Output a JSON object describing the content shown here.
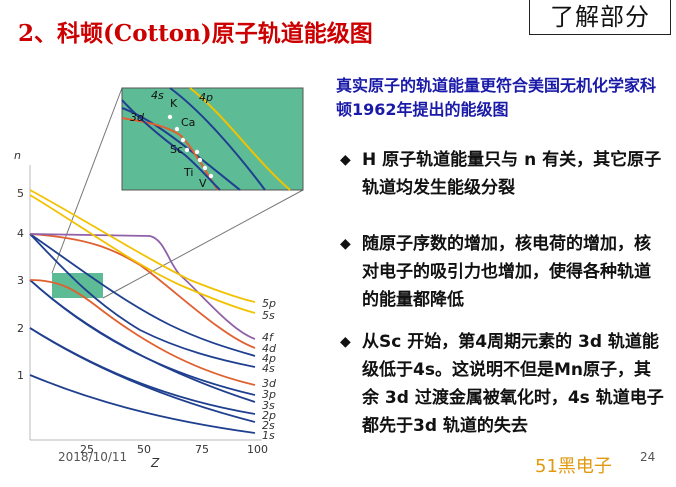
{
  "slide": {
    "title": "2、科顿(Cotton)原子轨道能级图",
    "badge": "了解部分",
    "intro": "真实原子的轨道能量更符合美国无机化学家科顿1962年提出的能级图",
    "bullets": [
      {
        "marker": "◆",
        "text": "H 原子轨道能量只与 n 有关，其它原子轨道均发生能级分裂"
      },
      {
        "marker": "◆",
        "text": "随原子序数的增加，核电荷的增加，核对电子的吸引力也增加，使得各种轨道的能量都降低"
      },
      {
        "marker": "◆",
        "text": "从Sc 开始，第4周期元素的 3d 轨道能级低于4s。这说明不但是Mn原子，其余 3d 过渡金属被氧化时，4s 轨道电子都先于3d 轨道的失去"
      }
    ],
    "date": "2018/10/11",
    "watermark": "51黑电子",
    "page_number": "24"
  },
  "chart_data": {
    "type": "line",
    "title": "",
    "xlabel": "Z",
    "ylabel": "n",
    "x_ticks": [
      "25",
      "50",
      "75",
      "100"
    ],
    "y_ticks": [
      "1",
      "2",
      "3",
      "4",
      "5"
    ],
    "xlim": [
      0,
      100
    ],
    "ylim": [
      0,
      5.5
    ],
    "grid": false,
    "series_labels": [
      "5p",
      "5s",
      "4f",
      "4d",
      "4p",
      "4s",
      "3d",
      "3p",
      "3s",
      "2p",
      "2s",
      "1s"
    ],
    "inset": {
      "labels": [
        "4s",
        "4p",
        "3d",
        "K",
        "Ca",
        "Sc",
        "Ti",
        "V"
      ],
      "background": "#5dbb95"
    },
    "colors": {
      "s_p_curves": "#1f3f8f",
      "d_curves": "#e06030",
      "p_high_curves": "#f2c200",
      "f_curve": "#9060a8",
      "zoom_box": "#5dbb95"
    }
  }
}
